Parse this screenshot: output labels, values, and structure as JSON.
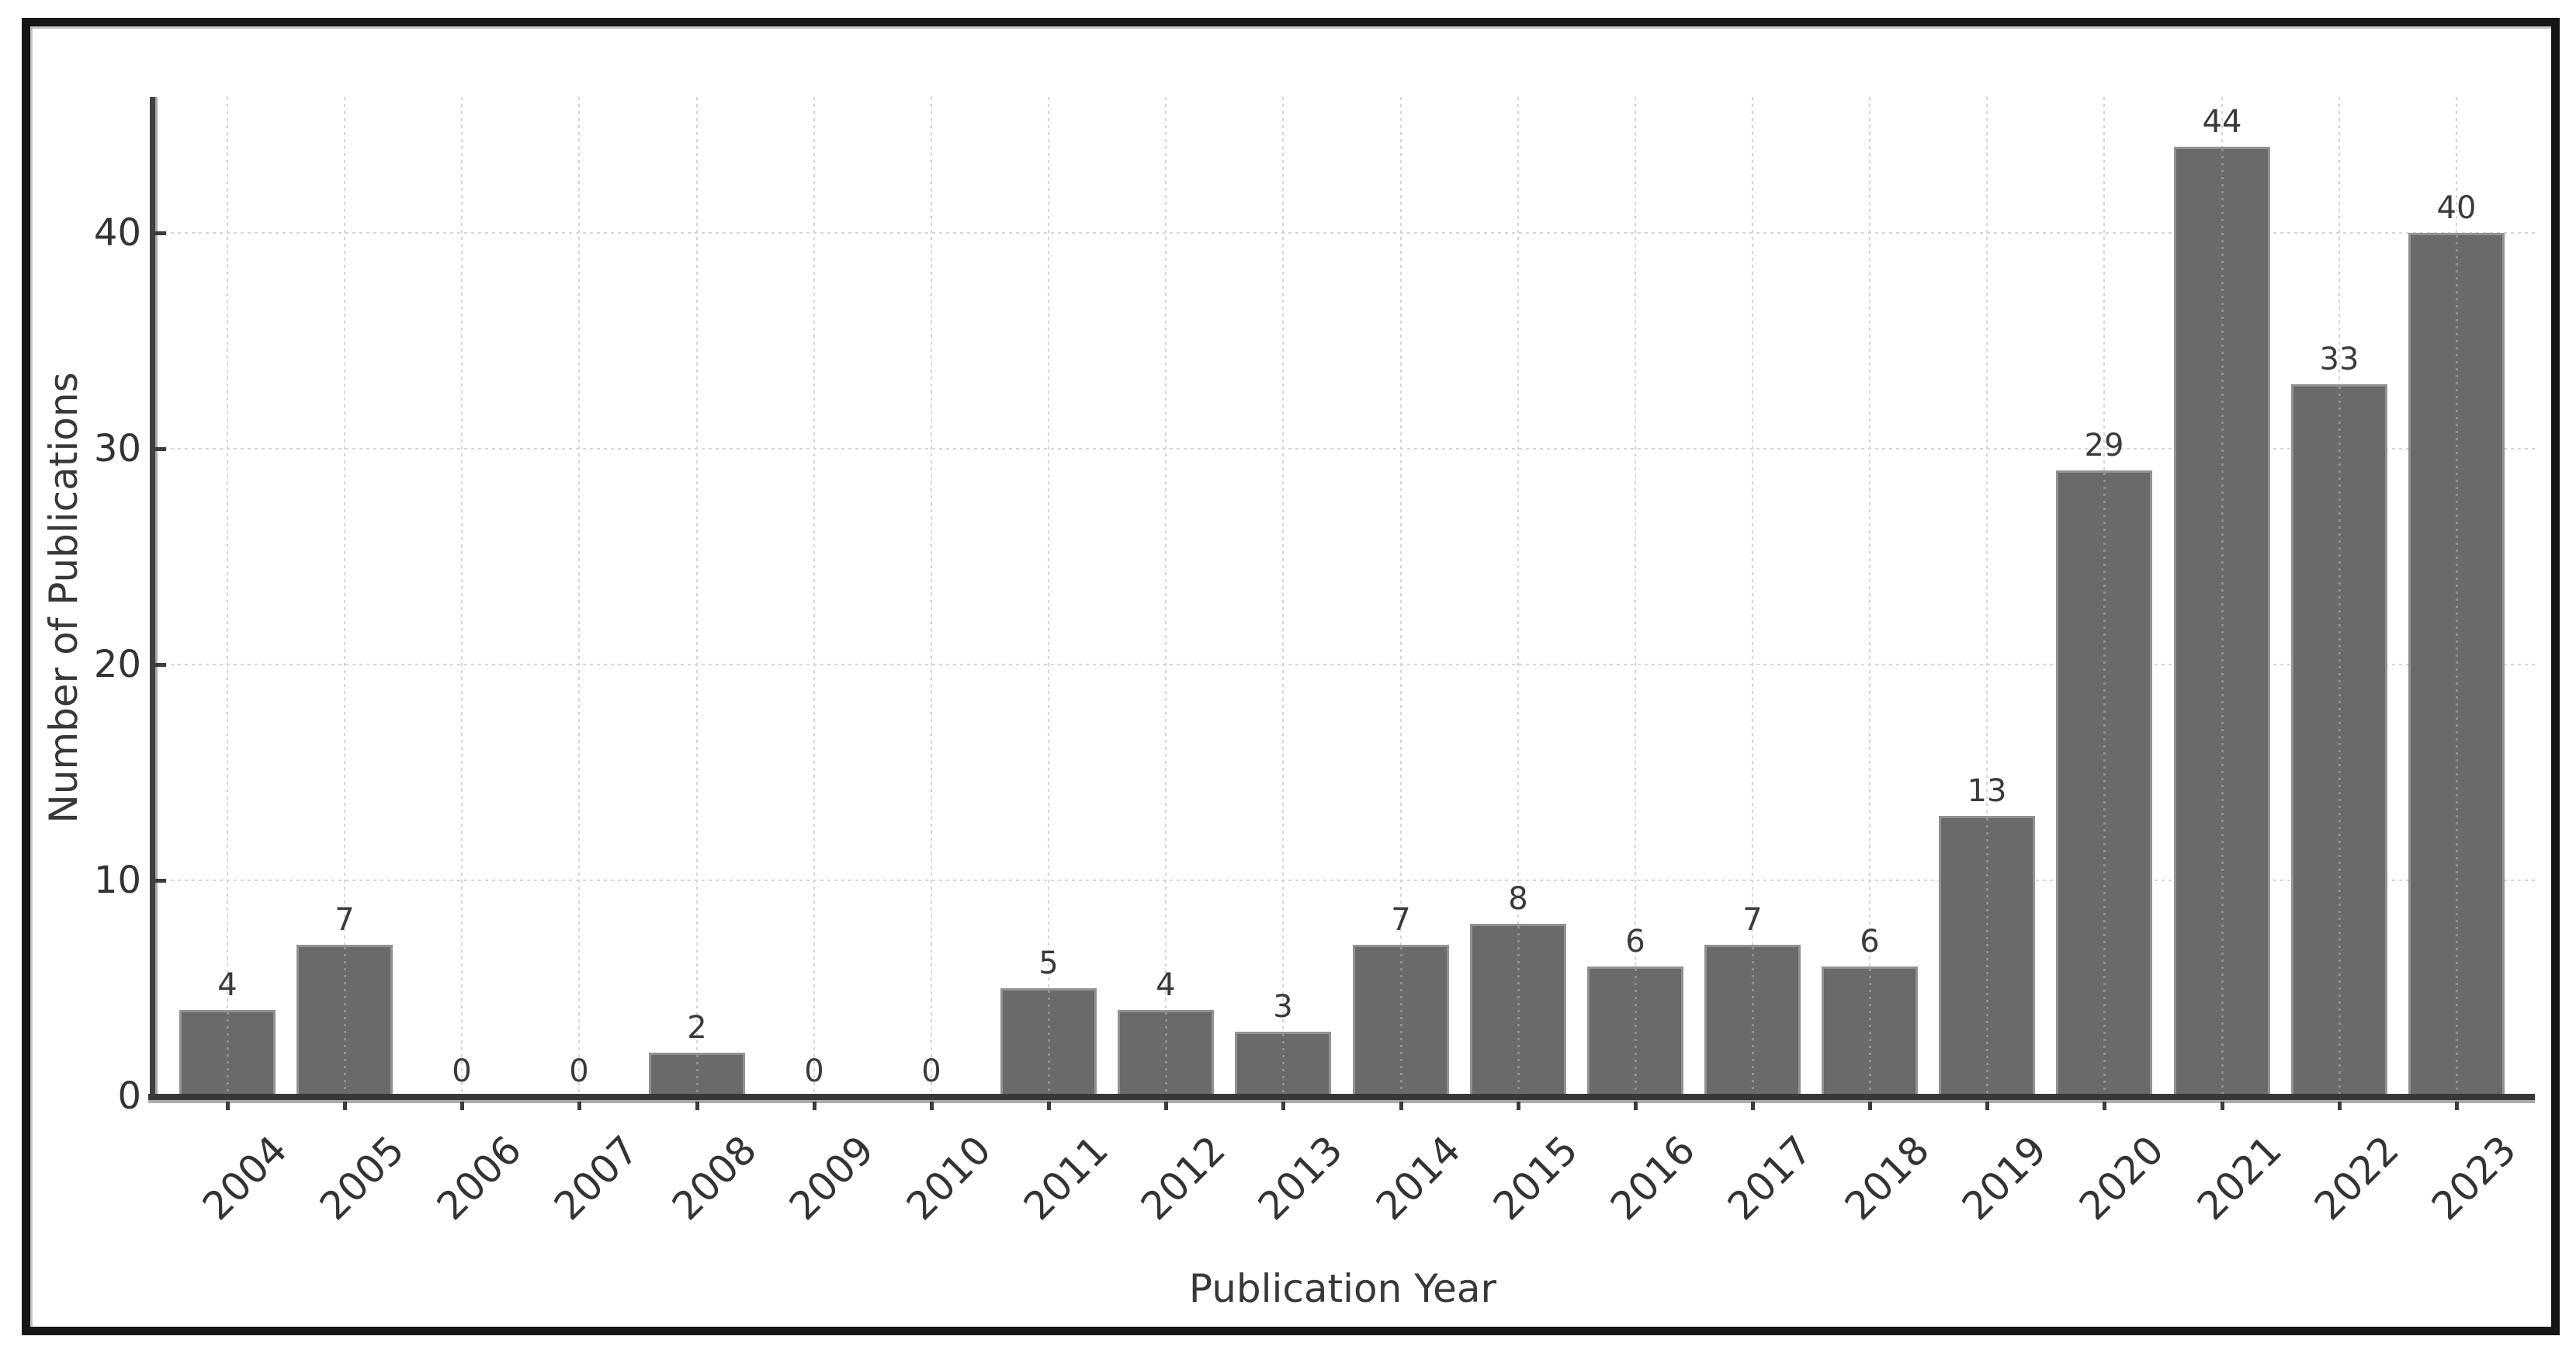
{
  "chart_data": {
    "type": "bar",
    "title": "",
    "xlabel": "Publication Year",
    "ylabel": "Number of Publications",
    "categories": [
      "2004",
      "2005",
      "2006",
      "2007",
      "2008",
      "2009",
      "2010",
      "2011",
      "2012",
      "2013",
      "2014",
      "2015",
      "2016",
      "2017",
      "2018",
      "2019",
      "2020",
      "2021",
      "2022",
      "2023"
    ],
    "values": [
      4,
      7,
      0,
      0,
      2,
      0,
      0,
      5,
      4,
      3,
      7,
      8,
      6,
      7,
      6,
      13,
      29,
      44,
      33,
      40
    ],
    "bar_value_labels": [
      "4",
      "7",
      "0",
      "0",
      "2",
      "0",
      "0",
      "5",
      "4",
      "3",
      "7",
      "8",
      "6",
      "7",
      "6",
      "13",
      "29",
      "44",
      "33",
      "40"
    ],
    "yticks": [
      0,
      10,
      20,
      30,
      40
    ],
    "ylim": [
      0,
      46.4
    ],
    "xtick_rotation_deg": 45,
    "grid": {
      "horizontal": true,
      "vertical": true,
      "style": "dashed"
    },
    "legend_position": "none",
    "colors": {
      "bar_fill": "#6a6a6a",
      "bar_edge": "#929292",
      "grid_line": "#d5d5d5",
      "axis_line": "#383838",
      "text": "#333333",
      "figure_border": "#161616",
      "background": "#ffffff"
    }
  }
}
